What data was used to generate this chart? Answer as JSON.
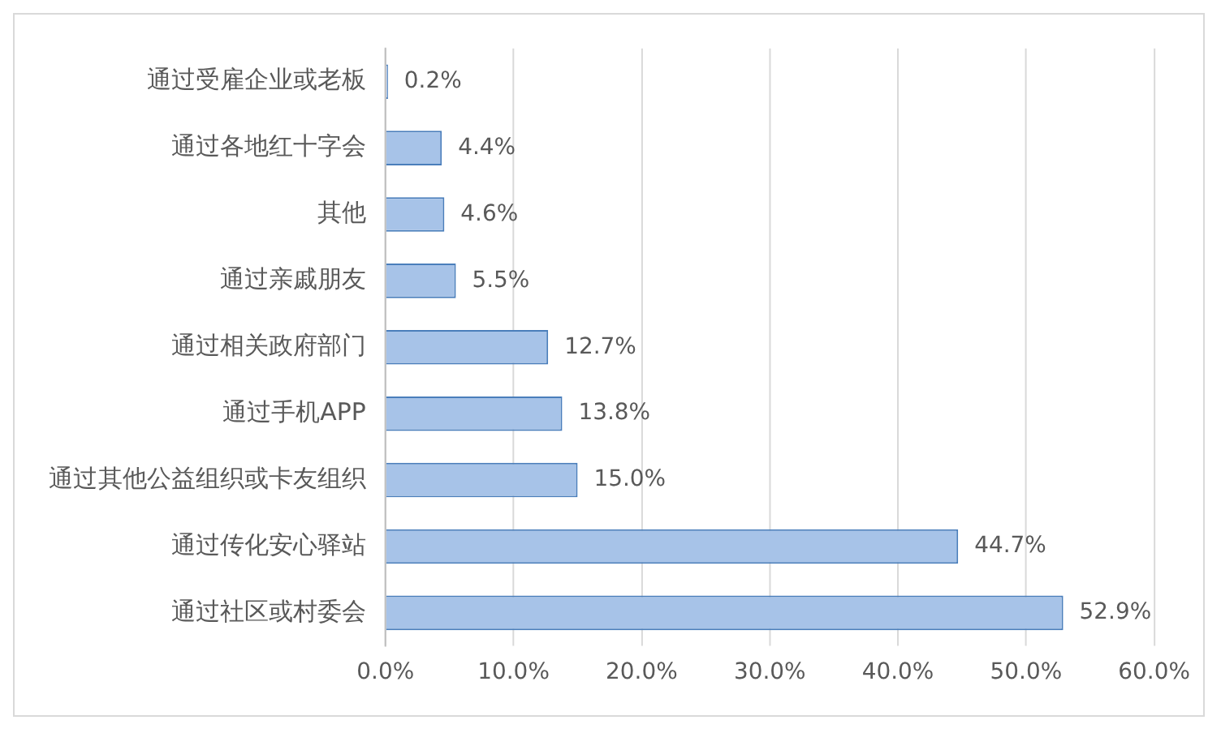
{
  "chart_data": {
    "type": "bar",
    "orientation": "horizontal",
    "categories": [
      "通过受雇企业或老板",
      "通过各地红十字会",
      "其他",
      "通过亲戚朋友",
      "通过相关政府部门",
      "通过手机APP",
      "通过其他公益组织或卡友组织",
      "通过传化安心驿站",
      "通过社区或村委会"
    ],
    "values": [
      0.2,
      4.4,
      4.6,
      5.5,
      12.7,
      13.8,
      15.0,
      44.7,
      52.9
    ],
    "value_labels": [
      "0.2%",
      "4.4%",
      "4.6%",
      "5.5%",
      "12.7%",
      "13.8%",
      "15.0%",
      "44.7%",
      "52.9%"
    ],
    "color": "#a7c3e8",
    "xlim": [
      0,
      60
    ],
    "xticks": [
      {
        "value": 0,
        "label": "0.0%"
      },
      {
        "value": 10,
        "label": "10.0%"
      },
      {
        "value": 20,
        "label": "20.0%"
      },
      {
        "value": 30,
        "label": "30.0%"
      },
      {
        "value": 40,
        "label": "40.0%"
      },
      {
        "value": 50,
        "label": "50.0%"
      },
      {
        "value": 60,
        "label": "60.0%"
      }
    ],
    "grid": "x",
    "legend": false
  }
}
